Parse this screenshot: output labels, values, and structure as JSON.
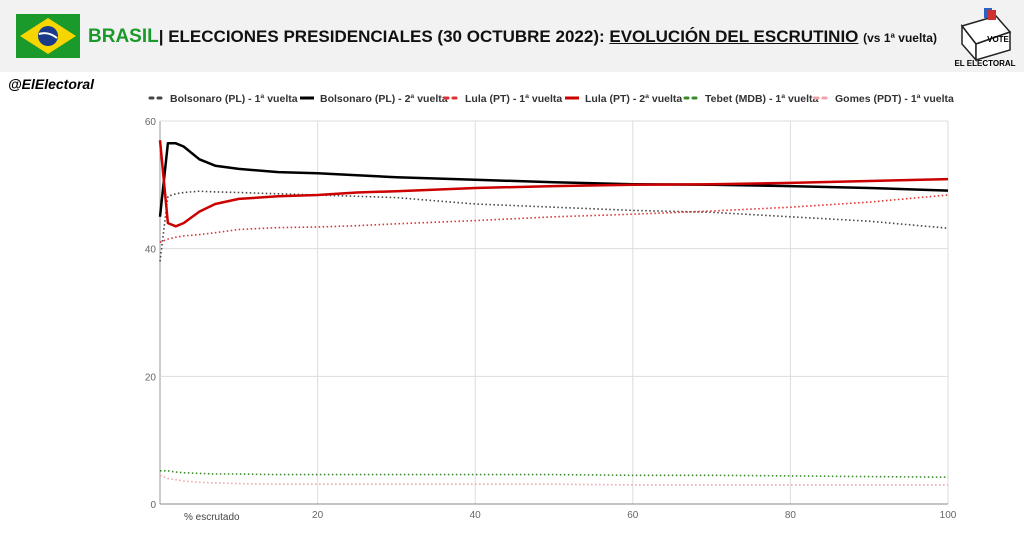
{
  "header": {
    "title_parts": [
      "BRASIL",
      "| ELECCIONES PRESIDENCIALES (30 OCTUBRE 2022): ",
      "EVOLUCIÓN DEL ESCRUTINIO",
      "(vs 1ª vuelta)"
    ],
    "logo_text": [
      "VOTE",
      "EL ELECTORAL"
    ],
    "handle": "@ElElectoral"
  },
  "chart_data": {
    "type": "line",
    "x_label": "% escrutado",
    "x": [
      0,
      1,
      2,
      3,
      5,
      7,
      10,
      15,
      20,
      25,
      30,
      40,
      50,
      60,
      70,
      80,
      90,
      100
    ],
    "series": [
      {
        "name": "Bolsonaro (PL) - 1ª vuelta",
        "color": "#444444",
        "style": "dotted",
        "values": [
          38,
          48.2,
          48.6,
          48.8,
          49,
          48.9,
          48.8,
          48.6,
          48.4,
          48.2,
          48,
          47,
          46.5,
          46,
          45.7,
          45,
          44.3,
          43.2
        ]
      },
      {
        "name": "Bolsonaro (PL) - 2ª vuelta",
        "color": "#000000",
        "style": "solid",
        "values": [
          45,
          56.5,
          56.5,
          56,
          54,
          53,
          52.5,
          52,
          51.8,
          51.5,
          51.2,
          50.8,
          50.4,
          50.1,
          50,
          49.8,
          49.5,
          49.1
        ]
      },
      {
        "name": "Lula (PT) - 1ª vuelta",
        "color": "#e03030",
        "style": "dotted",
        "values": [
          41,
          41.5,
          41.8,
          42,
          42.2,
          42.5,
          43,
          43.3,
          43.4,
          43.6,
          43.9,
          44.4,
          45,
          45.4,
          45.9,
          46.5,
          47.3,
          48.4
        ]
      },
      {
        "name": "Lula (PT) - 2ª vuelta",
        "color": "#cc0000",
        "style": "solid",
        "values": [
          57,
          44,
          43.5,
          44,
          45.8,
          47,
          47.8,
          48.2,
          48.4,
          48.8,
          49,
          49.5,
          49.8,
          50,
          50.1,
          50.3,
          50.6,
          50.9
        ]
      },
      {
        "name": "Tebet (MDB) - 1ª vuelta",
        "color": "#3a8a2a",
        "style": "dotted",
        "values": [
          5.2,
          5.2,
          5,
          4.9,
          4.8,
          4.7,
          4.7,
          4.6,
          4.6,
          4.6,
          4.6,
          4.6,
          4.6,
          4.5,
          4.5,
          4.4,
          4.3,
          4.2
        ]
      },
      {
        "name": "Gomes (PDT) - 1ª vuelta",
        "color": "#f4a0a8",
        "style": "dotted",
        "values": [
          4.5,
          4,
          3.8,
          3.6,
          3.4,
          3.3,
          3.2,
          3.1,
          3.1,
          3.1,
          3.1,
          3.1,
          3.1,
          3.0,
          3.0,
          3.0,
          3.0,
          3.0
        ]
      }
    ],
    "xlim": [
      0,
      100
    ],
    "xticks": [
      20,
      40,
      60,
      80,
      100
    ],
    "ylim": [
      0,
      60
    ],
    "yticks": [
      0,
      20,
      40,
      60
    ],
    "grid": true,
    "legend": "top"
  }
}
